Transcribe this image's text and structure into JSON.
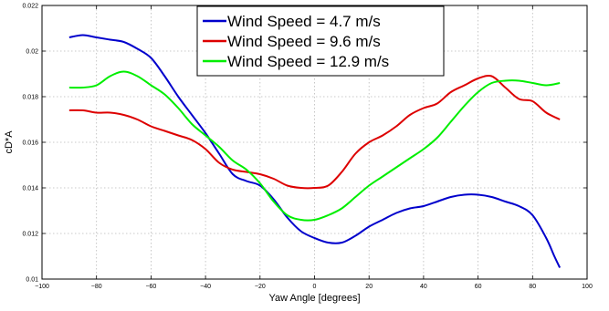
{
  "chart_data": {
    "type": "line",
    "xlabel": "Yaw Angle [degrees]",
    "ylabel": "cD*A",
    "xlim": [
      -100,
      100
    ],
    "ylim": [
      0.01,
      0.022
    ],
    "xticks": [
      "−100",
      "−80",
      "−60",
      "−40",
      "−20",
      "0",
      "20",
      "40",
      "60",
      "80",
      "100"
    ],
    "yticks": [
      "0.01",
      "0.012",
      "0.014",
      "0.016",
      "0.018",
      "0.02",
      "0.022"
    ],
    "grid": true,
    "legend_position": "top-center",
    "series": [
      {
        "name": "Wind Speed = 4.7 m/s",
        "color": "#0000cc",
        "x": [
          -90,
          -85,
          -80,
          -75,
          -70,
          -65,
          -60,
          -55,
          -50,
          -45,
          -40,
          -35,
          -30,
          -25,
          -20,
          -15,
          -10,
          -5,
          0,
          5,
          10,
          15,
          20,
          25,
          30,
          35,
          40,
          45,
          50,
          55,
          60,
          65,
          70,
          75,
          80,
          85,
          88,
          90
        ],
        "y": [
          0.0206,
          0.0207,
          0.0206,
          0.0205,
          0.0204,
          0.0201,
          0.0197,
          0.0189,
          0.018,
          0.0172,
          0.0164,
          0.0155,
          0.0146,
          0.0143,
          0.0141,
          0.0135,
          0.0127,
          0.0121,
          0.0118,
          0.0116,
          0.0116,
          0.0119,
          0.0123,
          0.0126,
          0.0129,
          0.0131,
          0.0132,
          0.0134,
          0.0136,
          0.0137,
          0.0137,
          0.0136,
          0.0134,
          0.0132,
          0.0128,
          0.0118,
          0.011,
          0.0105
        ]
      },
      {
        "name": "Wind Speed = 9.6 m/s",
        "color": "#dd0000",
        "x": [
          -90,
          -85,
          -80,
          -75,
          -70,
          -65,
          -60,
          -55,
          -50,
          -45,
          -40,
          -35,
          -30,
          -25,
          -20,
          -15,
          -10,
          -5,
          0,
          5,
          10,
          15,
          20,
          25,
          30,
          35,
          40,
          45,
          50,
          55,
          60,
          65,
          70,
          75,
          80,
          85,
          90
        ],
        "y": [
          0.0174,
          0.0174,
          0.0173,
          0.0173,
          0.0172,
          0.017,
          0.0167,
          0.0165,
          0.0163,
          0.0161,
          0.0157,
          0.0151,
          0.0148,
          0.0147,
          0.0146,
          0.0144,
          0.0141,
          0.014,
          0.014,
          0.0141,
          0.0147,
          0.0155,
          0.016,
          0.0163,
          0.0167,
          0.0172,
          0.0175,
          0.0177,
          0.0182,
          0.0185,
          0.0188,
          0.0189,
          0.0184,
          0.0179,
          0.0178,
          0.0173,
          0.017
        ]
      },
      {
        "name": "Wind Speed = 12.9 m/s",
        "color": "#00ee00",
        "x": [
          -90,
          -85,
          -80,
          -75,
          -70,
          -65,
          -60,
          -55,
          -50,
          -45,
          -40,
          -35,
          -30,
          -25,
          -20,
          -15,
          -10,
          -5,
          0,
          5,
          10,
          15,
          20,
          25,
          30,
          35,
          40,
          45,
          50,
          55,
          60,
          65,
          70,
          75,
          80,
          85,
          90
        ],
        "y": [
          0.0184,
          0.0184,
          0.0185,
          0.0189,
          0.0191,
          0.0189,
          0.0185,
          0.0181,
          0.0175,
          0.0168,
          0.0163,
          0.0158,
          0.0152,
          0.0148,
          0.0142,
          0.0134,
          0.0128,
          0.0126,
          0.0126,
          0.0128,
          0.0131,
          0.0136,
          0.0141,
          0.0145,
          0.0149,
          0.0153,
          0.0157,
          0.0162,
          0.0169,
          0.0176,
          0.0182,
          0.0186,
          0.0187,
          0.0187,
          0.0186,
          0.0185,
          0.0186
        ]
      }
    ]
  }
}
